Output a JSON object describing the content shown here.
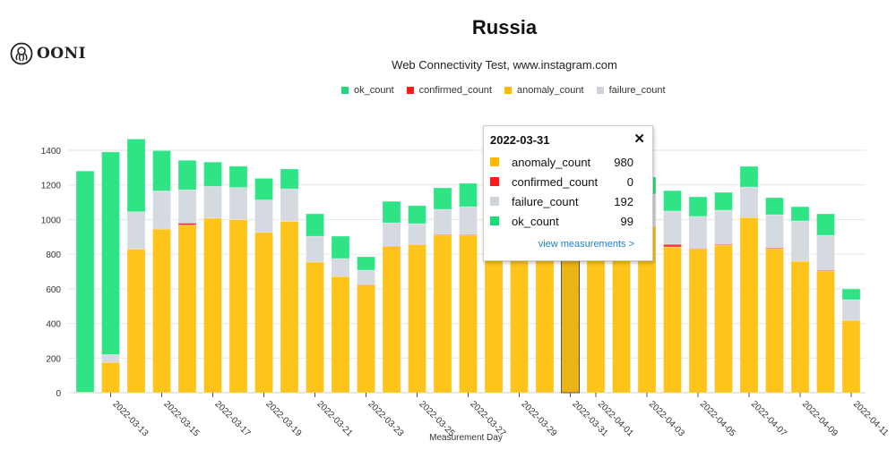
{
  "logo": {
    "text": "OONI",
    "icon": "octopus-icon"
  },
  "header": {
    "title": "Russia",
    "subtitle": "Web Connectivity Test, www.instagram.com"
  },
  "colors": {
    "ok_count": "#2ee484",
    "confirmed_count": "#f5333f",
    "anomaly_count": "#fec41a",
    "failure_count": "#d5d9e0"
  },
  "legend": [
    {
      "key": "ok_count",
      "label": "ok_count",
      "color": "#18dc78"
    },
    {
      "key": "confirmed_count",
      "label": "confirmed_count",
      "color": "#ff1a1a"
    },
    {
      "key": "anomaly_count",
      "label": "anomaly_count",
      "color": "#ffb800"
    },
    {
      "key": "failure_count",
      "label": "failure_count",
      "color": "#ced4da"
    }
  ],
  "tooltip": {
    "date": "2022-03-31",
    "close": "✕",
    "rows": [
      {
        "label": "anomaly_count",
        "value": "980",
        "color": "#ffb800"
      },
      {
        "label": "confirmed_count",
        "value": "0",
        "color": "#ff1a1a"
      },
      {
        "label": "failure_count",
        "value": "192",
        "color": "#ced4da"
      },
      {
        "label": "ok_count",
        "value": "99",
        "color": "#18dc78"
      }
    ],
    "link": "view measurements >"
  },
  "chart_data": {
    "type": "bar",
    "stacked": true,
    "title": "Russia",
    "subtitle": "Web Connectivity Test, www.instagram.com",
    "xlabel": "Measurement Day",
    "ylabel": "",
    "ylim": [
      0,
      1500
    ],
    "yticks": [
      0,
      200,
      400,
      600,
      800,
      1000,
      1200,
      1400
    ],
    "grid": true,
    "legend_position": "top",
    "highlighted_category": "2022-03-31",
    "categories": [
      "2022-03-12",
      "2022-03-13",
      "2022-03-14",
      "2022-03-15",
      "2022-03-16",
      "2022-03-17",
      "2022-03-18",
      "2022-03-19",
      "2022-03-20",
      "2022-03-21",
      "2022-03-22",
      "2022-03-23",
      "2022-03-24",
      "2022-03-25",
      "2022-03-26",
      "2022-03-27",
      "2022-03-28",
      "2022-03-29",
      "2022-03-30",
      "2022-03-31",
      "2022-04-01",
      "2022-04-02",
      "2022-04-03",
      "2022-04-04",
      "2022-04-05",
      "2022-04-06",
      "2022-04-07",
      "2022-04-08",
      "2022-04-09",
      "2022-04-10",
      "2022-04-11"
    ],
    "xtick_labels": [
      "2022-03-13",
      "2022-03-15",
      "2022-03-17",
      "2022-03-19",
      "2022-03-21",
      "2022-03-23",
      "2022-03-25",
      "2022-03-27",
      "2022-03-29",
      "2022-03-31",
      "2022-04-01",
      "2022-04-03",
      "2022-04-05",
      "2022-04-07",
      "2022-04-09",
      "2022-04-11"
    ],
    "series": [
      {
        "name": "anomaly_count",
        "values": [
          3,
          175,
          830,
          945,
          968,
          1008,
          1000,
          926,
          990,
          755,
          671,
          622,
          844,
          855,
          910,
          910,
          950,
          960,
          955,
          980,
          970,
          965,
          961,
          842,
          830,
          852,
          1012,
          832,
          759,
          702,
          418
        ]
      },
      {
        "name": "confirmed_count",
        "values": [
          0,
          0,
          0,
          0,
          12,
          0,
          0,
          0,
          0,
          0,
          0,
          3,
          3,
          2,
          4,
          4,
          0,
          0,
          0,
          0,
          0,
          0,
          0,
          15,
          4,
          5,
          0,
          5,
          0,
          5,
          0
        ]
      },
      {
        "name": "failure_count",
        "values": [
          0,
          45,
          215,
          220,
          192,
          184,
          185,
          187,
          187,
          148,
          104,
          83,
          134,
          119,
          145,
          160,
          180,
          185,
          185,
          192,
          185,
          180,
          186,
          192,
          184,
          197,
          176,
          191,
          233,
          202,
          119
        ]
      },
      {
        "name": "ok_count",
        "values": [
          1277,
          1170,
          420,
          233,
          170,
          140,
          123,
          125,
          115,
          130,
          129,
          77,
          124,
          104,
          124,
          135,
          110,
          105,
          110,
          99,
          110,
          110,
          98,
          118,
          113,
          103,
          119,
          98,
          82,
          124,
          62
        ]
      }
    ]
  }
}
